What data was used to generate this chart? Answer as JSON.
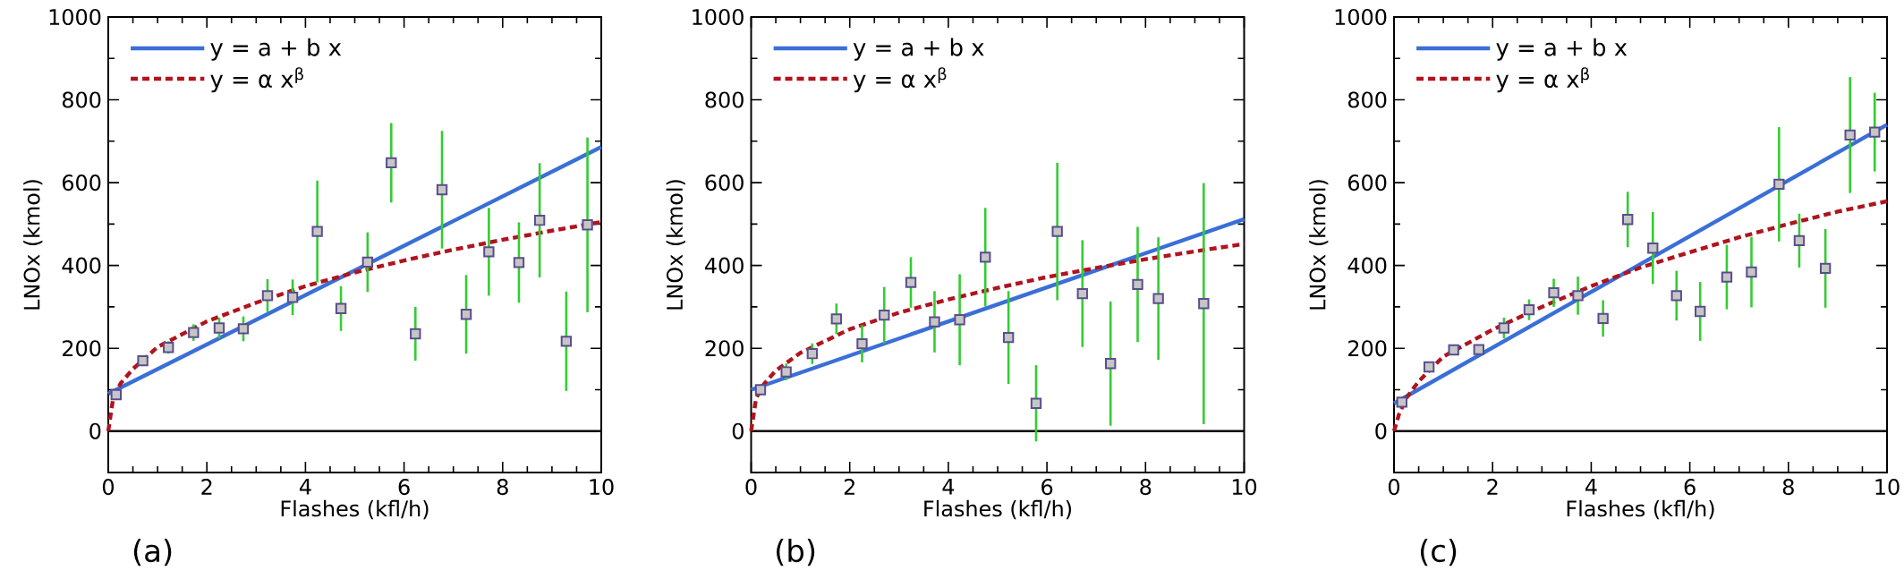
{
  "chart_data": [
    {
      "type": "scatter",
      "xlabel": "Flashes (kfl/h)",
      "ylabel": "LNOx (kmol)",
      "annotations": [
        "(a)"
      ],
      "legend": "top left",
      "xlim": [
        0,
        10
      ],
      "ylim": [
        -100,
        1000
      ],
      "xticks": [
        0,
        2,
        4,
        6,
        8,
        10
      ],
      "yticks": [
        0,
        200,
        400,
        600,
        800,
        1000
      ],
      "ref_lines": [
        {
          "axis": "y",
          "value": 0,
          "color": "#000000"
        }
      ],
      "series": [
        {
          "marker": "square",
          "color": "#5b4d8c",
          "x": [
            0.16,
            0.7,
            1.22,
            1.73,
            2.25,
            2.74,
            3.23,
            3.74,
            4.24,
            4.72,
            5.26,
            5.74,
            6.23,
            6.77,
            7.26,
            7.72,
            8.33,
            8.75,
            9.29,
            9.72
          ],
          "values": [
            88,
            170,
            202,
            238,
            249,
            247,
            327,
            323,
            482,
            296,
            408,
            648,
            235,
            583,
            282,
            433,
            407,
            509,
            217,
            498
          ],
          "errors": [
            null,
            null,
            15,
            20,
            25,
            30,
            40,
            43,
            123,
            54,
            72,
            96,
            65,
            142,
            95,
            106,
            97,
            138,
            120,
            211
          ]
        },
        {
          "type": "line",
          "name": "y = a + b x",
          "color": "#3a6fd8",
          "line_style": "solid",
          "marker": "none",
          "x": [
            0,
            10
          ],
          "values": [
            90,
            686
          ]
        },
        {
          "type": "line",
          "name": "y = α x$^{β}$",
          "color": "#b0141e",
          "line_style": "dashed",
          "marker": "none",
          "x": [
            0,
            0.1,
            0.25,
            0.5,
            1,
            2,
            3,
            4,
            5,
            6,
            7,
            8,
            9,
            10
          ],
          "values": [
            0,
            80,
            115,
            150,
            203,
            265,
            310,
            350,
            383,
            412,
            438,
            462,
            484,
            505
          ]
        }
      ]
    },
    {
      "type": "scatter",
      "xlabel": "Flashes (kfl/h)",
      "ylabel": "LNOx (kmol)",
      "annotations": [
        "(b)"
      ],
      "legend": "top left",
      "xlim": [
        0,
        10
      ],
      "ylim": [
        -100,
        1000
      ],
      "xticks": [
        0,
        2,
        4,
        6,
        8,
        10
      ],
      "yticks": [
        0,
        200,
        400,
        600,
        800,
        1000
      ],
      "ref_lines": [
        {
          "axis": "y",
          "value": 0,
          "color": "#000000"
        }
      ],
      "series": [
        {
          "marker": "square",
          "color": "#5b4d8c",
          "x": [
            0.19,
            0.71,
            1.24,
            1.73,
            2.25,
            2.7,
            3.24,
            3.72,
            4.23,
            4.75,
            5.22,
            5.78,
            6.21,
            6.72,
            7.29,
            7.84,
            8.26,
            9.18
          ],
          "values": [
            100,
            143,
            187,
            271,
            211,
            280,
            359,
            264,
            269,
            420,
            226,
            67,
            482,
            332,
            163,
            354,
            320,
            308
          ],
          "errors": [
            null,
            20,
            25,
            37,
            45,
            68,
            61,
            74,
            110,
            119,
            112,
            92,
            166,
            129,
            150,
            139,
            148,
            291
          ]
        },
        {
          "type": "line",
          "name": "y = a + b x",
          "color": "#3a6fd8",
          "line_style": "solid",
          "marker": "none",
          "x": [
            0,
            10
          ],
          "values": [
            100,
            512
          ]
        },
        {
          "type": "line",
          "name": "y = α x$^{β}$",
          "color": "#b0141e",
          "line_style": "dashed",
          "marker": "none",
          "x": [
            0,
            0.1,
            0.25,
            0.5,
            1,
            2,
            3,
            4,
            5,
            6,
            7,
            8,
            9,
            10
          ],
          "values": [
            0,
            79,
            112,
            146,
            189,
            246,
            286,
            318,
            346,
            372,
            394,
            415,
            434,
            452
          ]
        }
      ]
    },
    {
      "type": "scatter",
      "xlabel": "Flashes (kfl/h)",
      "ylabel": "LNOx (kmol)",
      "annotations": [
        "(c)"
      ],
      "legend": "top left",
      "xlim": [
        0,
        10
      ],
      "ylim": [
        -100,
        1000
      ],
      "xticks": [
        0,
        2,
        4,
        6,
        8,
        10
      ],
      "yticks": [
        0,
        200,
        400,
        600,
        800,
        1000
      ],
      "ref_lines": [
        {
          "axis": "y",
          "value": 0,
          "color": "#000000"
        }
      ],
      "series": [
        {
          "marker": "square",
          "color": "#5b4d8c",
          "x": [
            0.16,
            0.71,
            1.21,
            1.72,
            2.23,
            2.74,
            3.24,
            3.73,
            4.24,
            4.74,
            5.25,
            5.73,
            6.21,
            6.75,
            7.25,
            7.81,
            8.22,
            8.75,
            9.25,
            9.75
          ],
          "values": [
            70,
            155,
            196,
            197,
            249,
            293,
            334,
            327,
            272,
            511,
            442,
            327,
            289,
            372,
            384,
            596,
            460,
            393,
            715,
            722
          ],
          "errors": [
            null,
            null,
            null,
            null,
            25,
            25,
            34,
            46,
            44,
            67,
            87,
            60,
            71,
            78,
            85,
            138,
            65,
            95,
            140,
            95
          ]
        },
        {
          "type": "line",
          "name": "y = a + b x",
          "color": "#3a6fd8",
          "line_style": "solid",
          "marker": "none",
          "x": [
            0,
            10
          ],
          "values": [
            67,
            740
          ]
        },
        {
          "type": "line",
          "name": "y = α x$^{β}$",
          "color": "#b0141e",
          "line_style": "dashed",
          "marker": "none",
          "x": [
            0,
            0.1,
            0.25,
            0.5,
            1,
            2,
            3,
            4,
            5,
            6,
            7,
            8,
            9,
            10
          ],
          "values": [
            0,
            40,
            80,
            120,
            180,
            245,
            300,
            350,
            395,
            432,
            468,
            500,
            530,
            555
          ]
        }
      ]
    }
  ]
}
